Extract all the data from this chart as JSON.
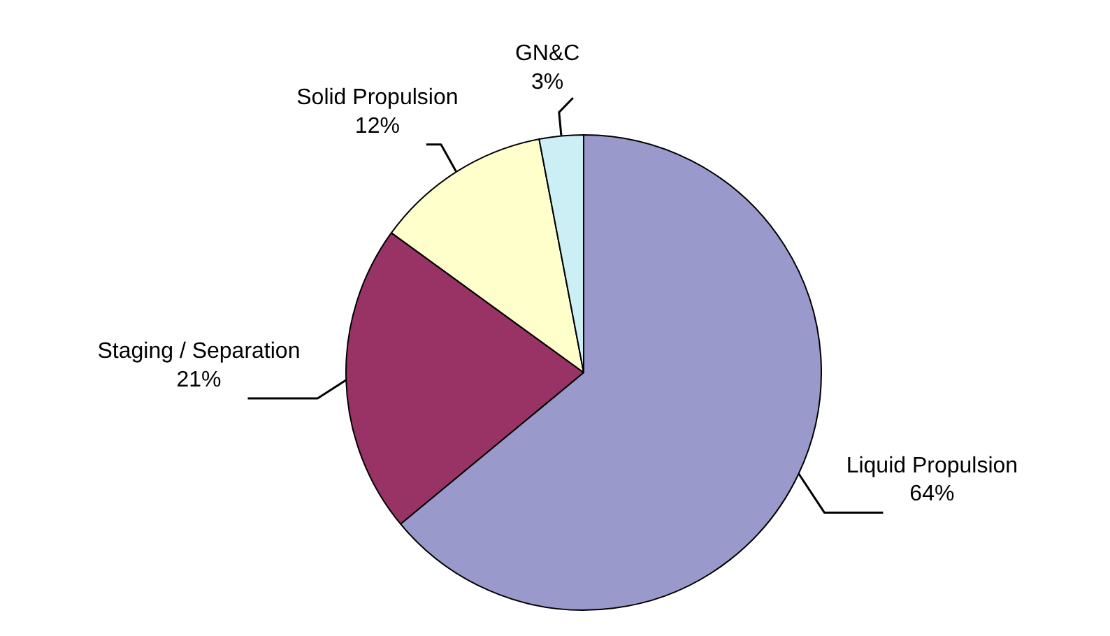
{
  "chart_data": {
    "type": "pie",
    "categories": [
      "Liquid Propulsion",
      "Staging / Separation",
      "Solid Propulsion",
      "GN&C"
    ],
    "values": [
      64,
      21,
      12,
      3
    ],
    "value_labels": [
      "64%",
      "21%",
      "12%",
      "3%"
    ],
    "colors": [
      "#9999cc",
      "#993366",
      "#ffffcc",
      "#cceef5"
    ]
  }
}
